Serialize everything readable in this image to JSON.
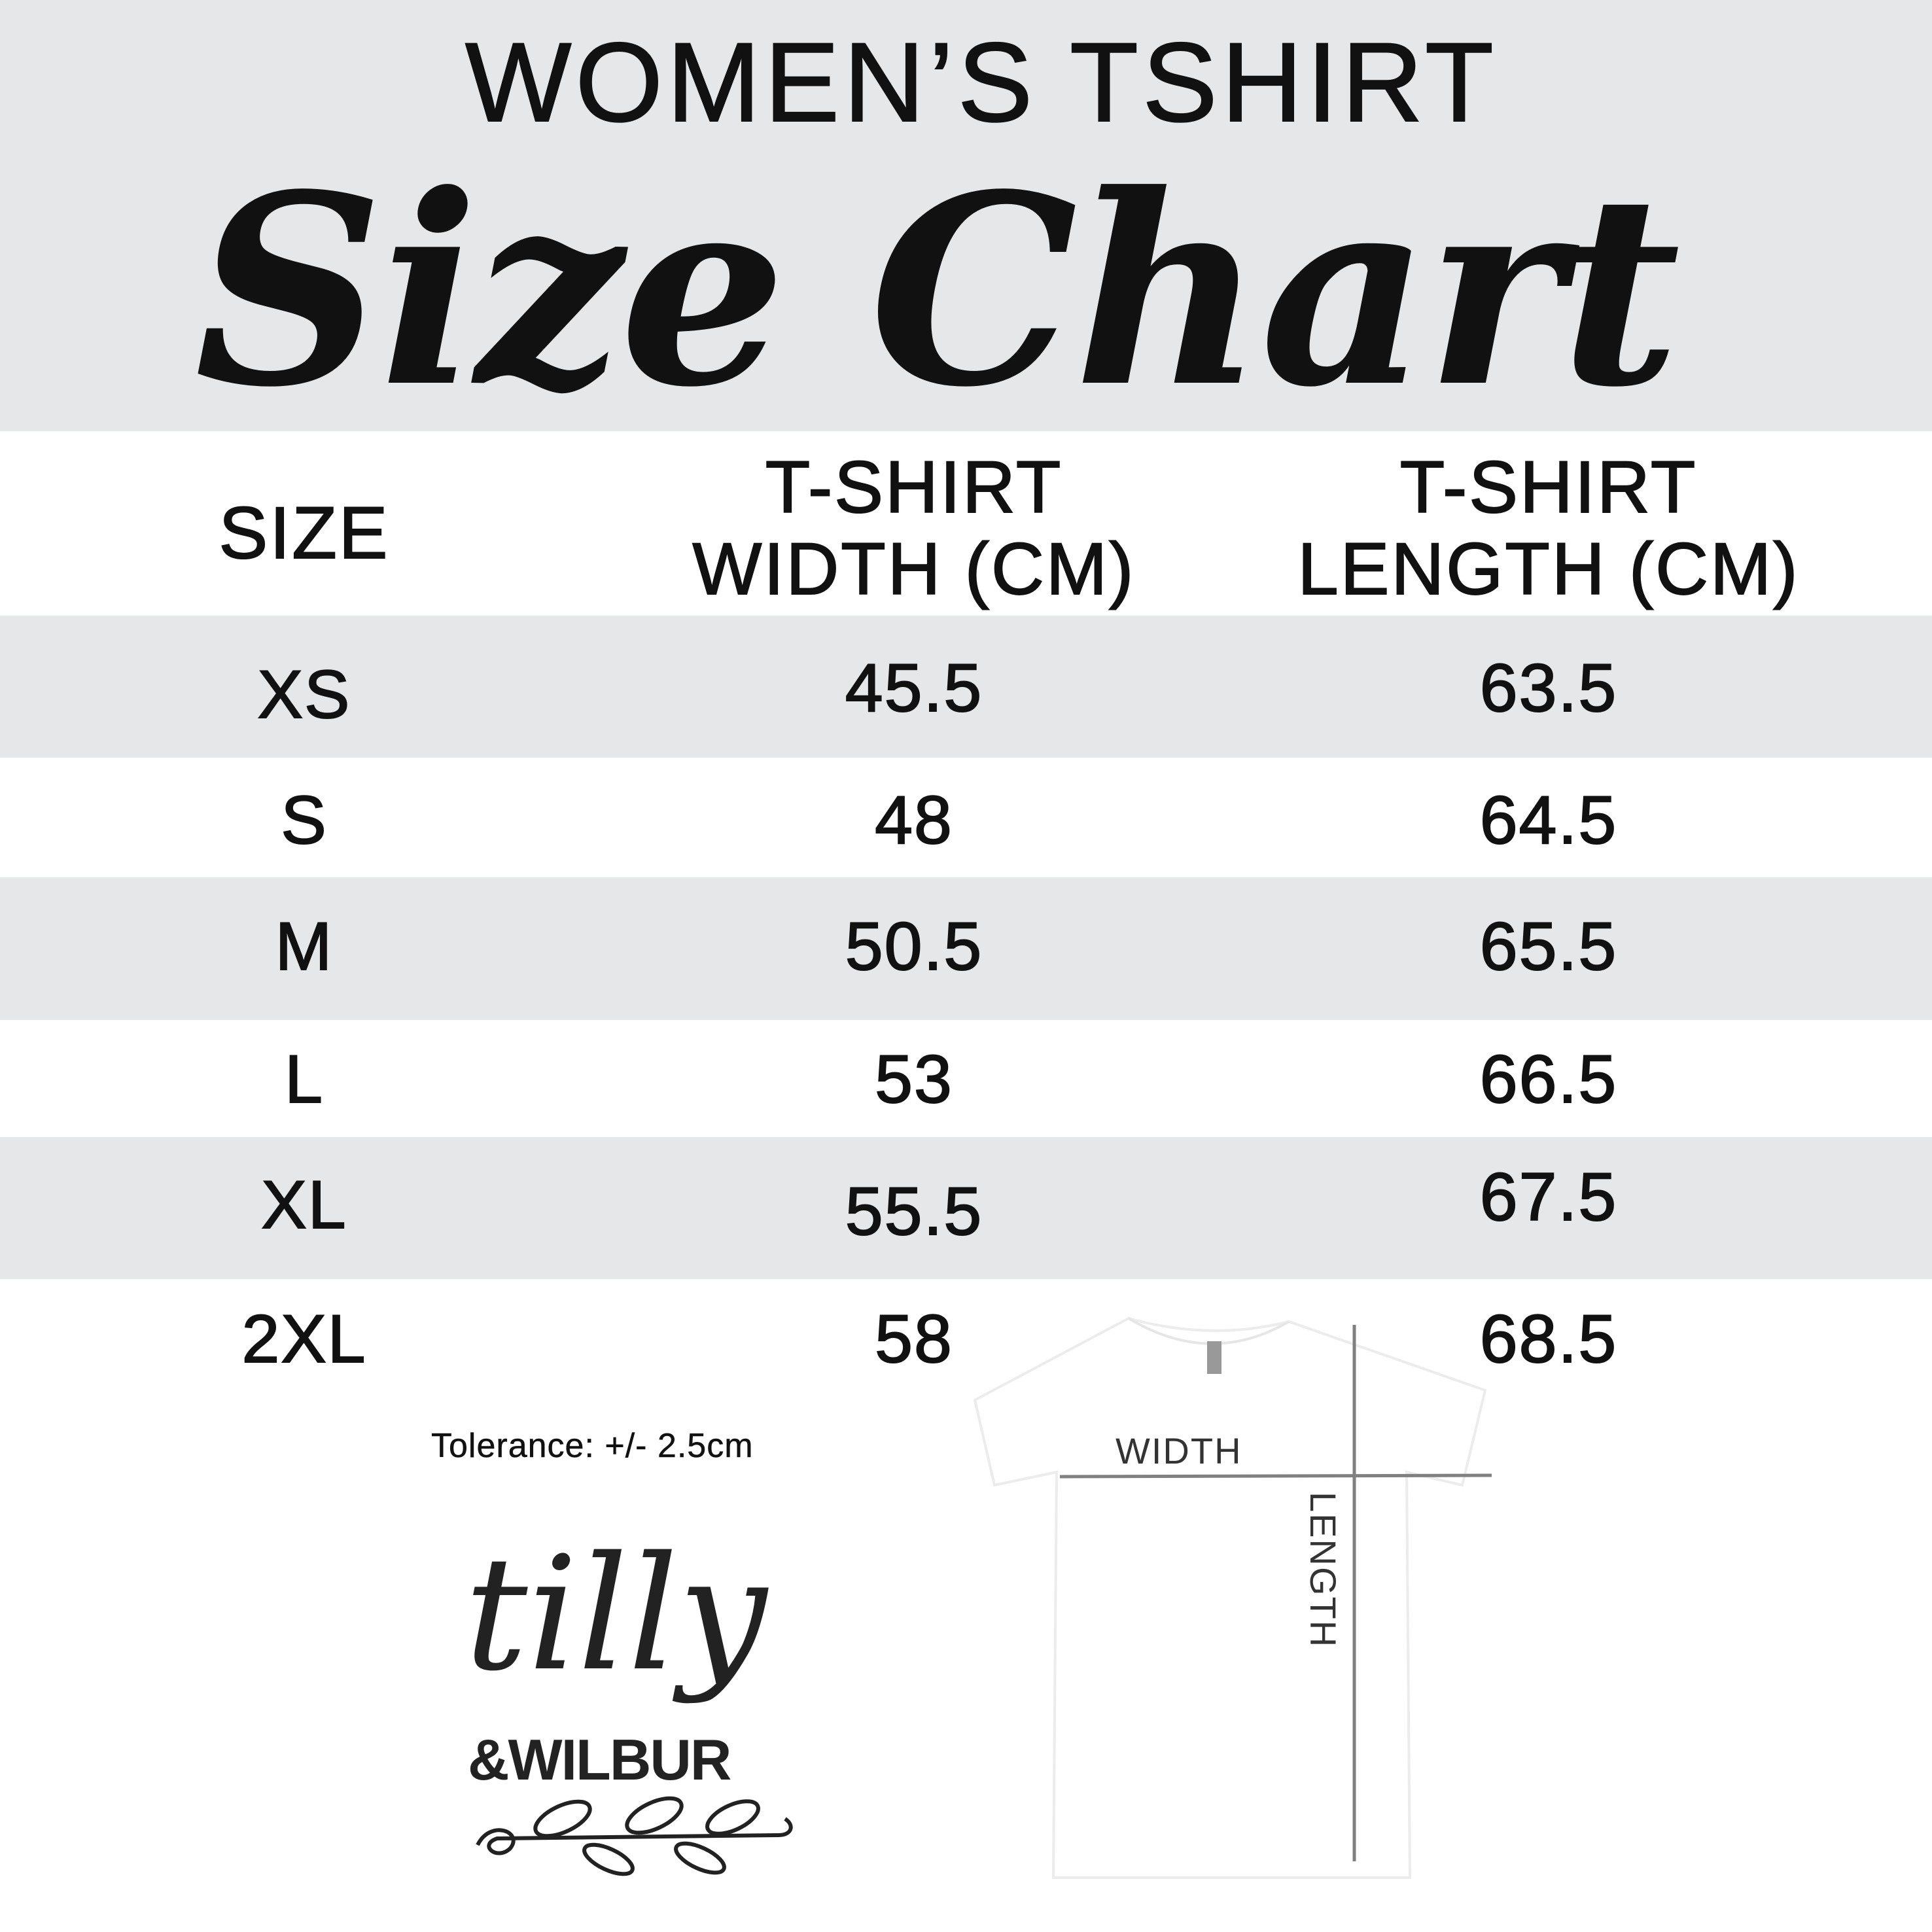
{
  "header": {
    "subtitle": "WOMEN’S TSHIRT",
    "title": "Size Chart",
    "background": "#e6e7e9"
  },
  "table": {
    "columns": [
      "SIZE",
      "T-SHIRT\nWIDTH (CM)",
      "T-SHIRT\nLENGTH (CM)"
    ],
    "column_lines": [
      [
        "SIZE"
      ],
      [
        "T-SHIRT",
        "WIDTH (CM)"
      ],
      [
        "T-SHIRT",
        "LENGTH (CM)"
      ]
    ],
    "rows": [
      [
        "XS",
        "45.5",
        "63.5"
      ],
      [
        "S",
        "48",
        "64.5"
      ],
      [
        "M",
        "50.5",
        "65.5"
      ],
      [
        "L",
        "53",
        "66.5"
      ],
      [
        "XL",
        "55.5",
        "67.5"
      ],
      [
        "2XL",
        "58",
        "68.5"
      ]
    ]
  },
  "tolerance": "Tolerance: +/- 2.5cm",
  "logo": {
    "line1": "tilly",
    "line2": "&WILBUR"
  },
  "diagram": {
    "width_label": "WIDTH",
    "length_label": "LENGTH",
    "line_color": "#808080"
  }
}
